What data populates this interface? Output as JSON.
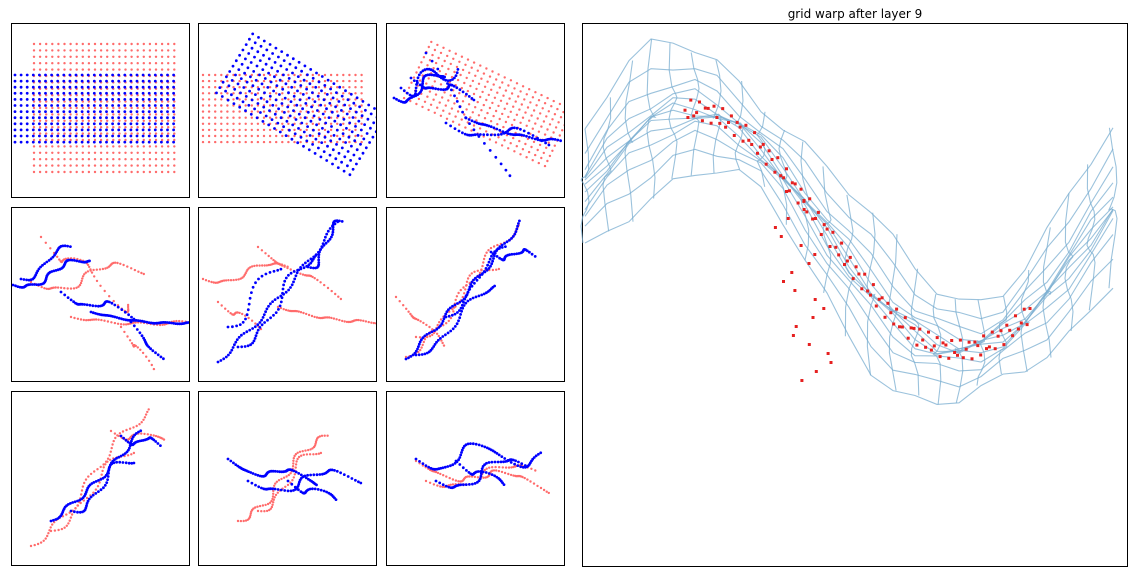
{
  "figure": {
    "title": "grid warp after layer 9",
    "colors": {
      "transformed": "#0000ff",
      "reference": "#ff6b6b",
      "grid": "#7aaed0",
      "points": "#e62020"
    }
  },
  "chart_data": [
    {
      "type": "scatter",
      "panel": 1,
      "pattern": "grid-rectangle",
      "series": [
        {
          "role": "reference"
        },
        {
          "role": "transformed"
        }
      ]
    },
    {
      "type": "scatter",
      "panel": 2,
      "pattern": "grid-rotated",
      "series": [
        {
          "role": "reference"
        },
        {
          "role": "transformed"
        }
      ]
    },
    {
      "type": "scatter",
      "panel": 3,
      "pattern": "grid-sheared",
      "series": [
        {
          "role": "reference"
        },
        {
          "role": "transformed"
        }
      ]
    },
    {
      "type": "scatter",
      "panel": 4,
      "pattern": "bands-crossing",
      "series": [
        {
          "role": "reference"
        },
        {
          "role": "transformed"
        }
      ]
    },
    {
      "type": "scatter",
      "panel": 5,
      "pattern": "diagonal-strands",
      "series": [
        {
          "role": "reference"
        },
        {
          "role": "transformed"
        }
      ]
    },
    {
      "type": "scatter",
      "panel": 6,
      "pattern": "diagonal-bundle",
      "series": [
        {
          "role": "reference"
        },
        {
          "role": "transformed"
        }
      ]
    },
    {
      "type": "scatter",
      "panel": 7,
      "pattern": "diagonal-twist",
      "series": [
        {
          "role": "reference"
        },
        {
          "role": "transformed"
        }
      ]
    },
    {
      "type": "scatter",
      "panel": 8,
      "pattern": "horizontal-twist",
      "series": [
        {
          "role": "reference"
        },
        {
          "role": "transformed"
        }
      ]
    },
    {
      "type": "scatter",
      "panel": 9,
      "pattern": "horizontal-braid",
      "series": [
        {
          "role": "reference"
        },
        {
          "role": "transformed"
        }
      ]
    },
    {
      "type": "line",
      "panel": "main",
      "title": "grid warp after layer 9",
      "pattern": "sine-warp-mesh",
      "grid": true
    }
  ]
}
